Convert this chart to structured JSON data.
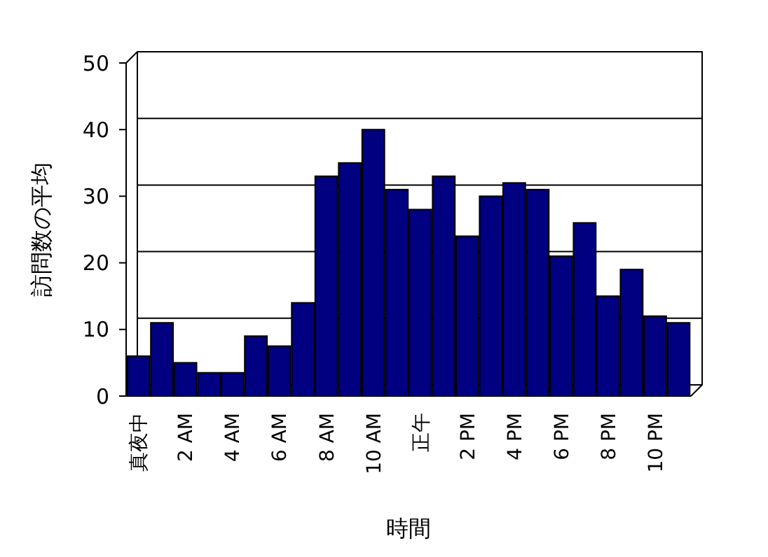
{
  "chart_data": {
    "type": "bar",
    "xlabel": "時間",
    "ylabel": "訪問数の平均",
    "categories": [
      "真夜中",
      null,
      "2 AM",
      null,
      "4 AM",
      null,
      "6 AM",
      null,
      "8 AM",
      null,
      "10 AM",
      null,
      "正午",
      null,
      "2 PM",
      null,
      "4 PM",
      null,
      "6 PM",
      null,
      "8 PM",
      null,
      "10 PM",
      null
    ],
    "values": [
      6,
      11,
      5,
      3.5,
      3.5,
      9,
      7.5,
      14,
      33,
      35,
      40,
      31,
      28,
      33,
      24,
      30,
      32,
      31,
      21,
      26,
      15,
      19,
      12,
      11
    ],
    "color": "#000080",
    "ylim": [
      0,
      50
    ],
    "yticks": [
      0,
      10,
      20,
      30,
      40,
      50
    ],
    "grid": "y"
  }
}
